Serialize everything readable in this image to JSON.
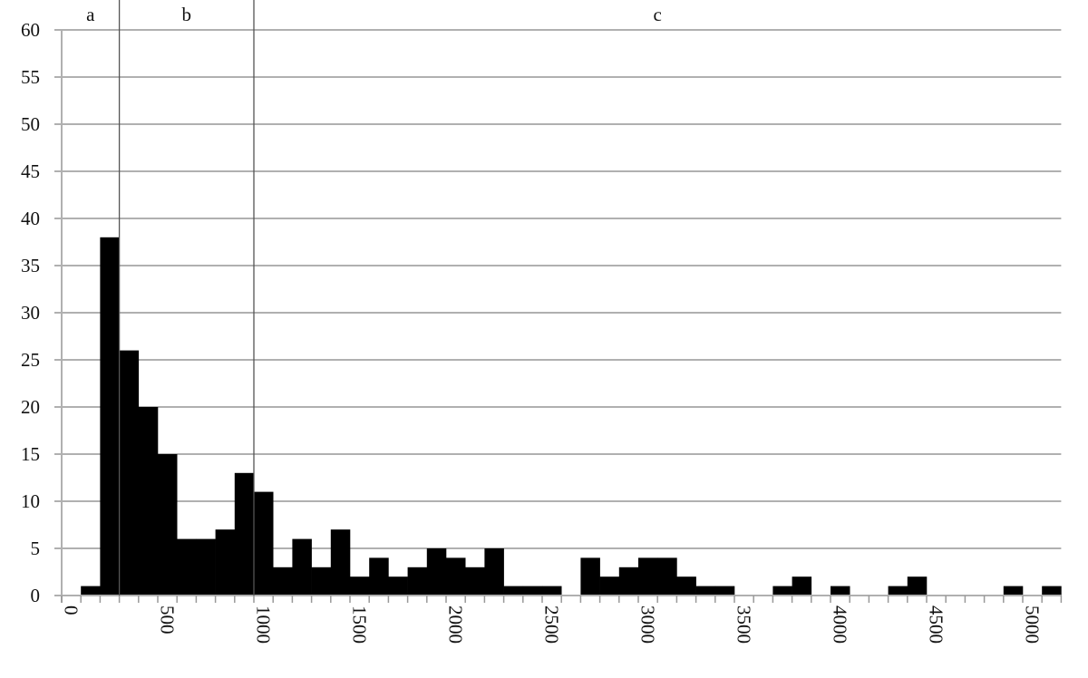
{
  "chart_data": {
    "type": "bar",
    "title": "",
    "xlabel": "",
    "ylabel": "",
    "ylim": [
      0,
      60
    ],
    "y_ticks": [
      0,
      5,
      10,
      15,
      20,
      25,
      30,
      35,
      40,
      45,
      50,
      55,
      60
    ],
    "x_tick_labels": [
      "0",
      "500",
      "1000",
      "1500",
      "2000",
      "2500",
      "3000",
      "3500",
      "4000",
      "4500",
      "5000"
    ],
    "grid": "horizontal",
    "categories": [
      0,
      100,
      200,
      300,
      400,
      500,
      600,
      700,
      800,
      900,
      1000,
      1100,
      1200,
      1300,
      1400,
      1500,
      1600,
      1700,
      1800,
      1900,
      2000,
      2100,
      2200,
      2300,
      2400,
      2500,
      2600,
      2700,
      2800,
      2900,
      3000,
      3100,
      3200,
      3300,
      3400,
      3500,
      3600,
      3700,
      3800,
      3900,
      4000,
      4100,
      4200,
      4300,
      4400,
      4500,
      4600,
      4700,
      4800,
      4900,
      5000,
      5100
    ],
    "values": [
      0,
      1,
      38,
      26,
      20,
      15,
      6,
      6,
      7,
      13,
      11,
      3,
      6,
      3,
      7,
      2,
      4,
      2,
      3,
      5,
      4,
      3,
      5,
      1,
      1,
      1,
      0,
      4,
      2,
      3,
      4,
      4,
      2,
      1,
      1,
      0,
      0,
      1,
      2,
      0,
      1,
      0,
      0,
      1,
      2,
      0,
      0,
      0,
      0,
      1,
      0,
      1
    ],
    "bar_color": "#000000",
    "grid_color": "#b0b0b0",
    "regions": [
      {
        "label": "a",
        "from": 0,
        "to": 300
      },
      {
        "label": "b",
        "from": 300,
        "to": 1000
      },
      {
        "label": "c",
        "from": 1000,
        "to": 5200
      }
    ]
  }
}
